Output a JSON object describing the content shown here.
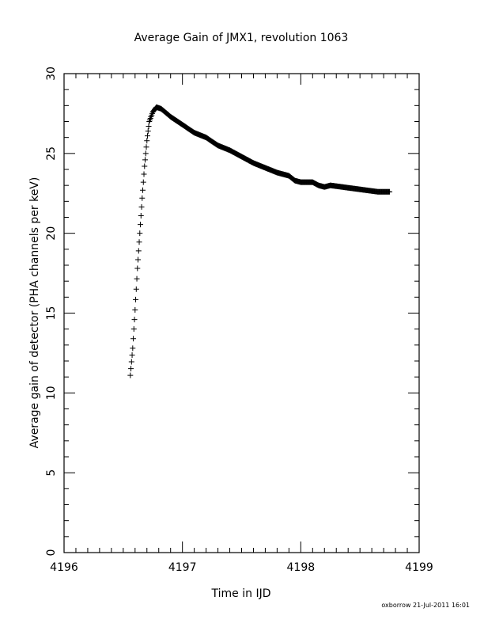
{
  "chart_data": {
    "type": "scatter",
    "title": "Average Gain of JMX1, revolution 1063",
    "xlabel": "Time in IJD",
    "ylabel": "Average gain of detector (PHA channels per keV)",
    "xlim": [
      4196,
      4199
    ],
    "ylim": [
      0,
      30
    ],
    "x_ticks": [
      4196,
      4197,
      4198,
      4199
    ],
    "x_tick_labels": [
      "4196",
      "4197",
      "4198",
      "4199"
    ],
    "y_ticks": [
      0,
      5,
      10,
      15,
      20,
      25,
      30
    ],
    "y_tick_labels": [
      "0",
      "5",
      "10",
      "15",
      "20",
      "25",
      "30"
    ],
    "marker": "plus",
    "grid": false,
    "legend": "none",
    "curve_points": [
      [
        4196.56,
        11.1
      ],
      [
        4196.58,
        12.8
      ],
      [
        4196.6,
        15.2
      ],
      [
        4196.62,
        17.8
      ],
      [
        4196.64,
        20.0
      ],
      [
        4196.66,
        22.2
      ],
      [
        4196.68,
        24.2
      ],
      [
        4196.7,
        25.8
      ],
      [
        4196.72,
        27.0
      ],
      [
        4196.75,
        27.6
      ],
      [
        4196.78,
        27.9
      ],
      [
        4196.82,
        27.8
      ],
      [
        4196.9,
        27.3
      ],
      [
        4197.0,
        26.8
      ],
      [
        4197.1,
        26.3
      ],
      [
        4197.2,
        26.0
      ],
      [
        4197.3,
        25.5
      ],
      [
        4197.4,
        25.2
      ],
      [
        4197.5,
        24.8
      ],
      [
        4197.6,
        24.4
      ],
      [
        4197.7,
        24.1
      ],
      [
        4197.8,
        23.8
      ],
      [
        4197.9,
        23.6
      ],
      [
        4197.95,
        23.3
      ],
      [
        4198.0,
        23.2
      ],
      [
        4198.1,
        23.2
      ],
      [
        4198.15,
        23.0
      ],
      [
        4198.2,
        22.9
      ],
      [
        4198.25,
        23.0
      ],
      [
        4198.35,
        22.9
      ],
      [
        4198.45,
        22.8
      ],
      [
        4198.55,
        22.7
      ],
      [
        4198.65,
        22.6
      ],
      [
        4198.75,
        22.6
      ]
    ]
  },
  "footer_text": "oxborrow 21-Jul-2011 16:01"
}
